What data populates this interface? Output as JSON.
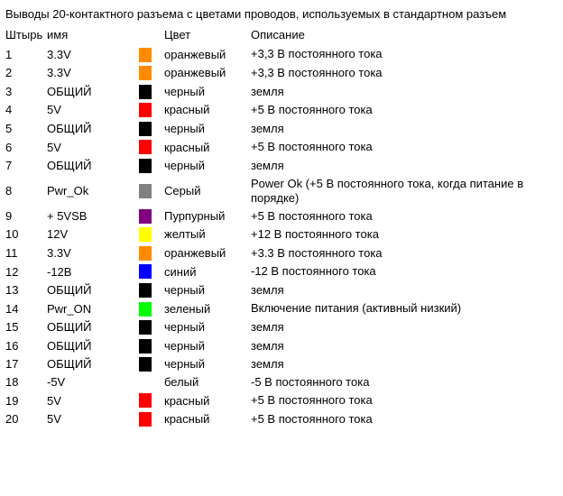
{
  "title": "Выводы 20-контактного разъема с цветами проводов, используемых в стандартном разъем",
  "headers": {
    "pin": "Штырь",
    "name": "имя",
    "color": "Цвет",
    "desc": "Описание"
  },
  "rows": [
    {
      "pin": "1",
      "name": "3.3V",
      "swatch": "#ff8c00",
      "color_name": "оранжевый",
      "desc": "+3,3 В постоянного тока"
    },
    {
      "pin": "2",
      "name": "3.3V",
      "swatch": "#ff8c00",
      "color_name": "оранжевый",
      "desc": "+3,3 В постоянного тока"
    },
    {
      "pin": "3",
      "name": "ОБЩИЙ",
      "swatch": "#000000",
      "color_name": "черный",
      "desc": "земля"
    },
    {
      "pin": "4",
      "name": "5V",
      "swatch": "#ff0000",
      "color_name": "красный",
      "desc": "+5 В постоянного тока"
    },
    {
      "pin": "5",
      "name": "ОБЩИЙ",
      "swatch": "#000000",
      "color_name": "черный",
      "desc": "земля"
    },
    {
      "pin": "6",
      "name": "5V",
      "swatch": "#ff0000",
      "color_name": "красный",
      "desc": "+5 В постоянного тока"
    },
    {
      "pin": "7",
      "name": "ОБЩИЙ",
      "swatch": "#000000",
      "color_name": "черный",
      "desc": "земля"
    },
    {
      "pin": "8",
      "name": "Pwr_Ok",
      "swatch": "#808080",
      "color_name": "Серый",
      "desc": "Power Ok (+5 В постоянного тока, когда питание в порядке)"
    },
    {
      "pin": "9",
      "name": "+ 5VSB",
      "swatch": "#800080",
      "color_name": "Пурпурный",
      "desc": "+5 В постоянного тока"
    },
    {
      "pin": "10",
      "name": "12V",
      "swatch": "#ffff00",
      "color_name": "желтый",
      "desc": "+12 В постоянного тока"
    },
    {
      "pin": "11",
      "name": "3.3V",
      "swatch": "#ff8c00",
      "color_name": "оранжевый",
      "desc": "+3.3 В постоянного тока"
    },
    {
      "pin": "12",
      "name": "-12В",
      "swatch": "#0000ff",
      "color_name": "синий",
      "desc": "-12 В постоянного тока"
    },
    {
      "pin": "13",
      "name": "ОБЩИЙ",
      "swatch": "#000000",
      "color_name": "черный",
      "desc": "земля"
    },
    {
      "pin": "14",
      "name": "Pwr_ON",
      "swatch": "#00ff00",
      "color_name": "зеленый",
      "desc": "Включение питания (активный низкий)"
    },
    {
      "pin": "15",
      "name": "ОБЩИЙ",
      "swatch": "#000000",
      "color_name": "черный",
      "desc": "земля"
    },
    {
      "pin": "16",
      "name": "ОБЩИЙ",
      "swatch": "#000000",
      "color_name": "черный",
      "desc": "земля"
    },
    {
      "pin": "17",
      "name": "ОБЩИЙ",
      "swatch": "#000000",
      "color_name": "черный",
      "desc": "земля"
    },
    {
      "pin": "18",
      "name": "-5V",
      "swatch": "",
      "color_name": "белый",
      "desc": "-5 В постоянного тока"
    },
    {
      "pin": "19",
      "name": "5V",
      "swatch": "#ff0000",
      "color_name": "красный",
      "desc": "+5 В постоянного тока"
    },
    {
      "pin": "20",
      "name": "5V",
      "swatch": "#ff0000",
      "color_name": "красный",
      "desc": "+5 В постоянного тока"
    }
  ]
}
